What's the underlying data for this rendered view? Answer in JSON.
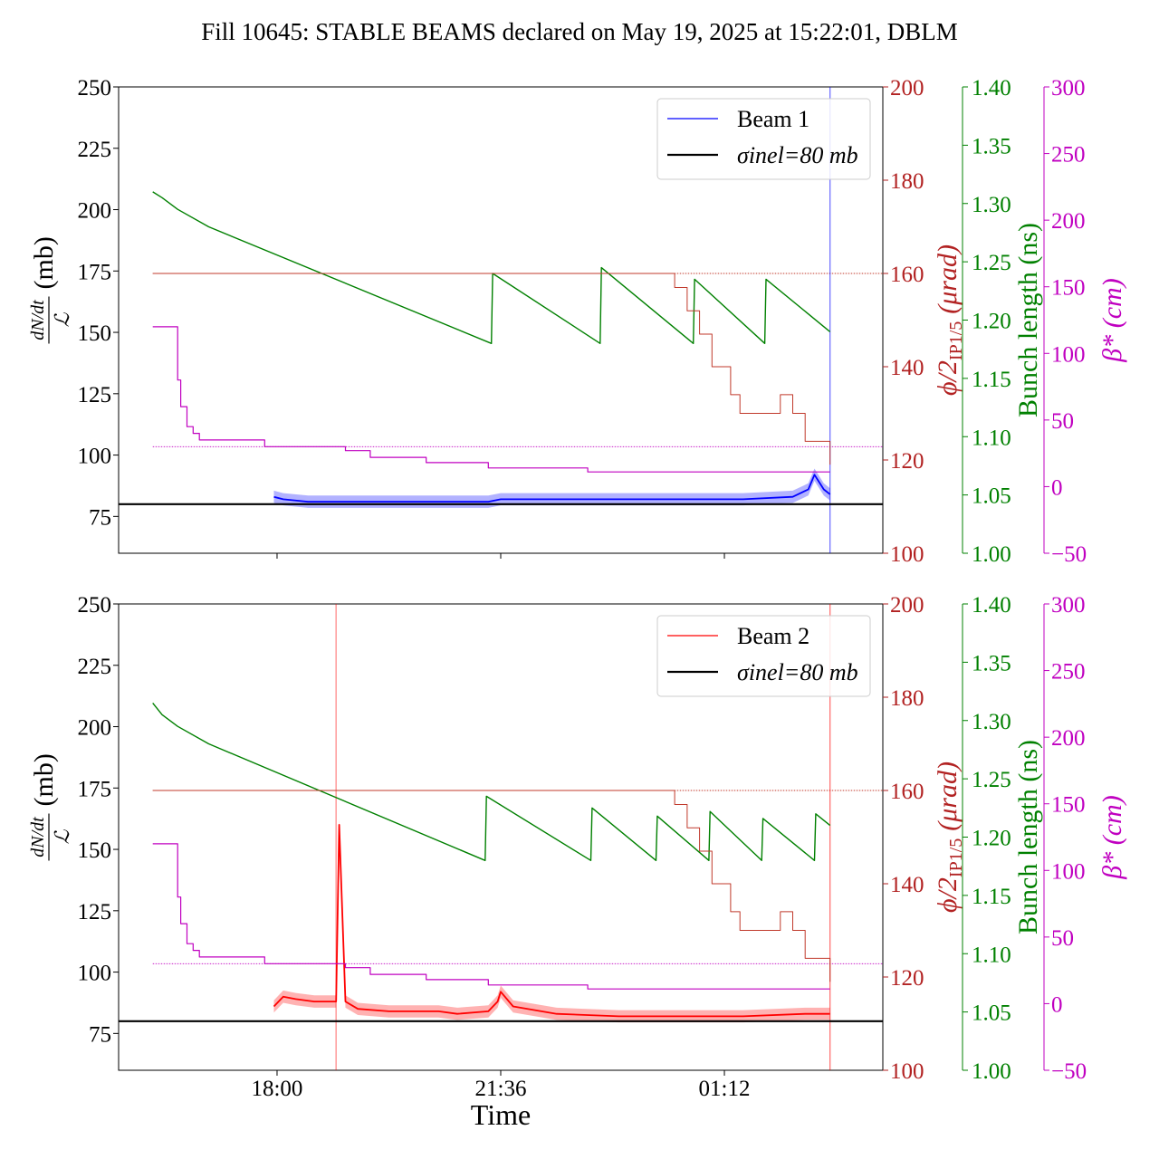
{
  "title": "Fill 10645: STABLE BEAMS declared on May 19, 2025 at 15:22:01, DBLM",
  "colors": {
    "beam1": "#0000ff",
    "beam2": "#ff0000",
    "sigma": "#000000",
    "angle": "#c0392b",
    "angle_axis": "#b22222",
    "bunch": "#008000",
    "beta": "#c000c0"
  },
  "axes": {
    "left": {
      "label_main": "(mb)",
      "frac_num": "dN/dt",
      "frac_den": "ℒ",
      "ylim": [
        60,
        250
      ],
      "ticks": [
        75,
        100,
        125,
        150,
        175,
        200,
        225,
        250
      ]
    },
    "angle": {
      "label_phi": "ϕ/2",
      "label_sub": "IP1/5",
      "label_unit": "(μrad)",
      "ylim": [
        100,
        200
      ],
      "ticks": [
        100,
        120,
        140,
        160,
        180,
        200
      ]
    },
    "bunch": {
      "label": "Bunch length (ns)",
      "ylim": [
        1.0,
        1.4
      ],
      "ticks": [
        "1.00",
        "1.05",
        "1.10",
        "1.15",
        "1.20",
        "1.25",
        "1.30",
        "1.35",
        "1.40"
      ]
    },
    "beta": {
      "label": "β* (cm)",
      "ylim": [
        -50,
        300
      ],
      "ticks": [
        "−50",
        "0",
        "50",
        "100",
        "150",
        "200",
        "250",
        "300"
      ]
    },
    "x": {
      "label": "Time",
      "tick_labels": [
        "18:00",
        "21:36",
        "01:12"
      ],
      "tick_hours": [
        18.0,
        21.6,
        25.2
      ],
      "xlim": [
        15.45,
        27.75
      ]
    }
  },
  "chart_data": [
    {
      "type": "line",
      "panel": "top",
      "xlabel": "Time",
      "ylabel": "dN/dt / ℒ (mb)",
      "legend": {
        "location": "top-right",
        "entries": [
          "Beam 1",
          "σinel=80 mb"
        ]
      },
      "series": [
        {
          "name": "Beam 1",
          "axis": "left",
          "x": [
            17.95,
            18.1,
            18.5,
            19.5,
            20.5,
            21.4,
            21.6,
            22.5,
            23.5,
            24.5,
            25.5,
            26.3,
            26.55,
            26.65,
            26.8,
            26.9
          ],
          "values": [
            83,
            82,
            81,
            81,
            81,
            81,
            82,
            82,
            82,
            82,
            82,
            83,
            86,
            92,
            86,
            84
          ]
        },
        {
          "name": "σinel=80 mb",
          "axis": "left",
          "x": [
            15.45,
            27.75
          ],
          "values": [
            80,
            80
          ]
        },
        {
          "axis": "bunch",
          "x": [
            16.0,
            16.15,
            16.4,
            16.9,
            21.45,
            21.47,
            23.2,
            23.22,
            24.7,
            24.72,
            25.85,
            25.87,
            26.9
          ],
          "values": [
            1.31,
            1.305,
            1.295,
            1.28,
            1.18,
            1.24,
            1.18,
            1.245,
            1.18,
            1.235,
            1.18,
            1.235,
            1.19
          ]
        },
        {
          "axis": "beta",
          "x": [
            16.0,
            16.35,
            16.4,
            16.45,
            16.55,
            16.65,
            16.75,
            17.8,
            19.1,
            19.5,
            20.4,
            21.4,
            23.0,
            24.4,
            25.4,
            26.9
          ],
          "values": [
            120,
            120,
            80,
            60,
            45,
            40,
            35,
            30,
            27,
            22,
            18,
            14,
            11,
            11,
            11,
            11
          ]
        },
        {
          "axis": "angle",
          "x": [
            16.0,
            24.35,
            24.4,
            24.6,
            24.8,
            25.0,
            25.3,
            25.45,
            25.75,
            25.95,
            26.1,
            26.3,
            26.5,
            26.9
          ],
          "values": [
            160,
            160,
            157,
            152,
            147,
            140,
            134,
            130,
            130,
            130,
            134,
            130,
            124,
            119
          ]
        }
      ],
      "reference_lines": {
        "angle": 160,
        "beta": 30
      },
      "end_marker_hour": 26.9
    },
    {
      "type": "line",
      "panel": "bottom",
      "xlabel": "Time",
      "ylabel": "dN/dt / ℒ (mb)",
      "legend": {
        "location": "top-right",
        "entries": [
          "Beam 2",
          "σinel=80 mb"
        ]
      },
      "series": [
        {
          "name": "Beam 2",
          "axis": "left",
          "x": [
            17.95,
            18.1,
            18.3,
            18.6,
            18.95,
            19.0,
            19.1,
            19.3,
            19.8,
            20.2,
            20.6,
            20.9,
            21.4,
            21.55,
            21.6,
            21.8,
            22.5,
            23.5,
            24.5,
            25.5,
            26.5,
            26.9
          ],
          "values": [
            86,
            90,
            89,
            88,
            88,
            160,
            88,
            85,
            84,
            84,
            84,
            83,
            84,
            88,
            92,
            86,
            83,
            82,
            82,
            82,
            83,
            83
          ]
        },
        {
          "name": "σinel=80 mb",
          "axis": "left",
          "x": [
            15.45,
            27.75
          ],
          "values": [
            80,
            80
          ]
        },
        {
          "axis": "bunch",
          "x": [
            16.0,
            16.15,
            16.4,
            16.9,
            21.35,
            21.37,
            23.05,
            23.07,
            24.1,
            24.12,
            24.95,
            24.97,
            25.8,
            25.82,
            26.65,
            26.67,
            26.9
          ],
          "values": [
            1.315,
            1.305,
            1.295,
            1.28,
            1.18,
            1.235,
            1.18,
            1.225,
            1.18,
            1.218,
            1.18,
            1.222,
            1.18,
            1.216,
            1.18,
            1.22,
            1.21
          ]
        },
        {
          "axis": "beta",
          "x": [
            16.0,
            16.35,
            16.4,
            16.45,
            16.55,
            16.65,
            16.75,
            17.8,
            19.1,
            19.5,
            20.4,
            21.4,
            23.0,
            24.4,
            25.4,
            26.9
          ],
          "values": [
            120,
            120,
            80,
            60,
            45,
            40,
            35,
            30,
            27,
            22,
            18,
            14,
            11,
            11,
            11,
            11
          ]
        },
        {
          "axis": "angle",
          "x": [
            16.0,
            24.35,
            24.4,
            24.6,
            24.8,
            25.0,
            25.3,
            25.45,
            25.75,
            25.95,
            26.1,
            26.3,
            26.5,
            26.9
          ],
          "values": [
            160,
            160,
            157,
            152,
            147,
            140,
            134,
            130,
            130,
            130,
            134,
            130,
            124,
            119
          ]
        }
      ],
      "reference_lines": {
        "angle": 160,
        "beta": 30
      },
      "spike_marker_hour": 18.95,
      "end_marker_hour": 26.9
    }
  ]
}
